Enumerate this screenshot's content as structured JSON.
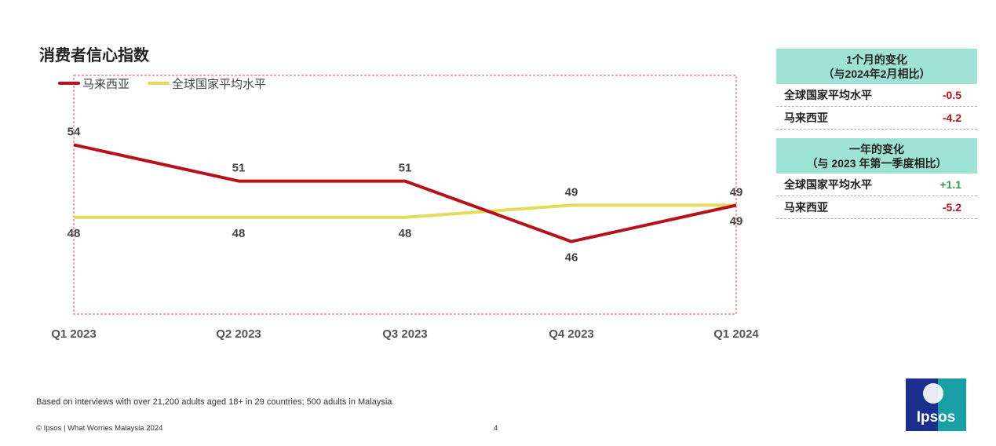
{
  "title": "消费者信心指数",
  "chart_data": {
    "type": "line",
    "categories": [
      "Q1 2023",
      "Q2 2023",
      "Q3 2023",
      "Q4 2023",
      "Q1 2024"
    ],
    "series": [
      {
        "name": "马来西亚",
        "values": [
          54,
          51,
          51,
          46,
          49
        ],
        "color": "#b5121b"
      },
      {
        "name": "全球国家平均水平",
        "values": [
          48,
          48,
          48,
          49,
          49
        ],
        "color": "#e3dc5a"
      }
    ],
    "ylim": [
      40,
      56
    ],
    "legend_position": "top-left",
    "grid": false,
    "plot_border": "dashed red box"
  },
  "monthly_change": {
    "title_line1": "1个月的变化",
    "title_line2": "（与2024年2月相比）",
    "rows": [
      {
        "label": "全球国家平均水平",
        "value": "-0.5"
      },
      {
        "label": "马来西亚",
        "value": "-4.2"
      }
    ]
  },
  "yearly_change": {
    "title_line1": "一年的变化",
    "title_line2": "（与 2023 年第一季度相比）",
    "rows": [
      {
        "label": "全球国家平均水平",
        "value": "+1.1"
      },
      {
        "label": "马来西亚",
        "value": "-5.2"
      }
    ]
  },
  "footnote": "Based on interviews with over 21,200 adults aged 18+ in 29 countries; 500 adults in Malaysia",
  "copyright": "© Ipsos | What Worries Malaysia 2024",
  "page_number": "4",
  "logo_text": "Ipsos",
  "colors": {
    "malaysia": "#b5121b",
    "global": "#e3dc5a",
    "panel_header": "#9fe3d6",
    "negative": "#b5121b",
    "positive": "#2e9c52"
  }
}
